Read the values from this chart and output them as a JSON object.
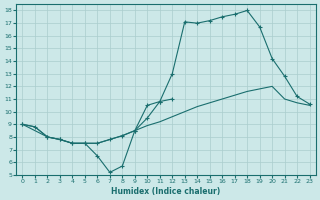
{
  "xlabel": "Humidex (Indice chaleur)",
  "bg_color": "#cce8e8",
  "grid_color": "#aacece",
  "line_color": "#1a6e6e",
  "xlim": [
    -0.5,
    23.5
  ],
  "ylim": [
    5,
    18.5
  ],
  "xticks": [
    0,
    1,
    2,
    3,
    4,
    5,
    6,
    7,
    8,
    9,
    10,
    11,
    12,
    13,
    14,
    15,
    16,
    17,
    18,
    19,
    20,
    21,
    22,
    23
  ],
  "yticks": [
    5,
    6,
    7,
    8,
    9,
    10,
    11,
    12,
    13,
    14,
    15,
    16,
    17,
    18
  ],
  "line1_x": [
    0,
    1,
    2,
    3,
    4,
    5,
    6,
    7,
    8,
    9,
    10,
    11,
    12,
    13,
    14,
    15,
    16,
    17,
    18,
    19,
    20,
    21,
    22,
    23
  ],
  "line1_y": [
    9.0,
    8.8,
    8.0,
    7.8,
    7.5,
    7.5,
    6.5,
    5.2,
    5.7,
    8.5,
    10.5,
    10.8,
    13.0,
    17.1,
    17.0,
    17.2,
    17.5,
    17.7,
    18.0,
    16.7,
    14.2,
    12.8,
    11.2,
    10.6
  ],
  "line2_x": [
    0,
    2,
    3,
    4,
    5,
    6,
    7,
    8,
    9,
    10,
    11,
    12
  ],
  "line2_y": [
    9.0,
    8.0,
    7.8,
    7.5,
    7.5,
    7.5,
    7.8,
    8.1,
    8.5,
    9.5,
    10.8,
    11.0
  ],
  "line3_x": [
    0,
    1,
    2,
    3,
    4,
    5,
    6,
    7,
    8,
    9,
    10,
    11,
    12,
    13,
    14,
    15,
    16,
    17,
    18,
    19,
    20,
    21,
    22,
    23
  ],
  "line3_y": [
    9.0,
    8.8,
    8.0,
    7.8,
    7.5,
    7.5,
    7.5,
    7.8,
    8.1,
    8.5,
    8.9,
    9.2,
    9.6,
    10.0,
    10.4,
    10.7,
    11.0,
    11.3,
    11.6,
    11.8,
    12.0,
    11.0,
    10.7,
    10.5
  ]
}
